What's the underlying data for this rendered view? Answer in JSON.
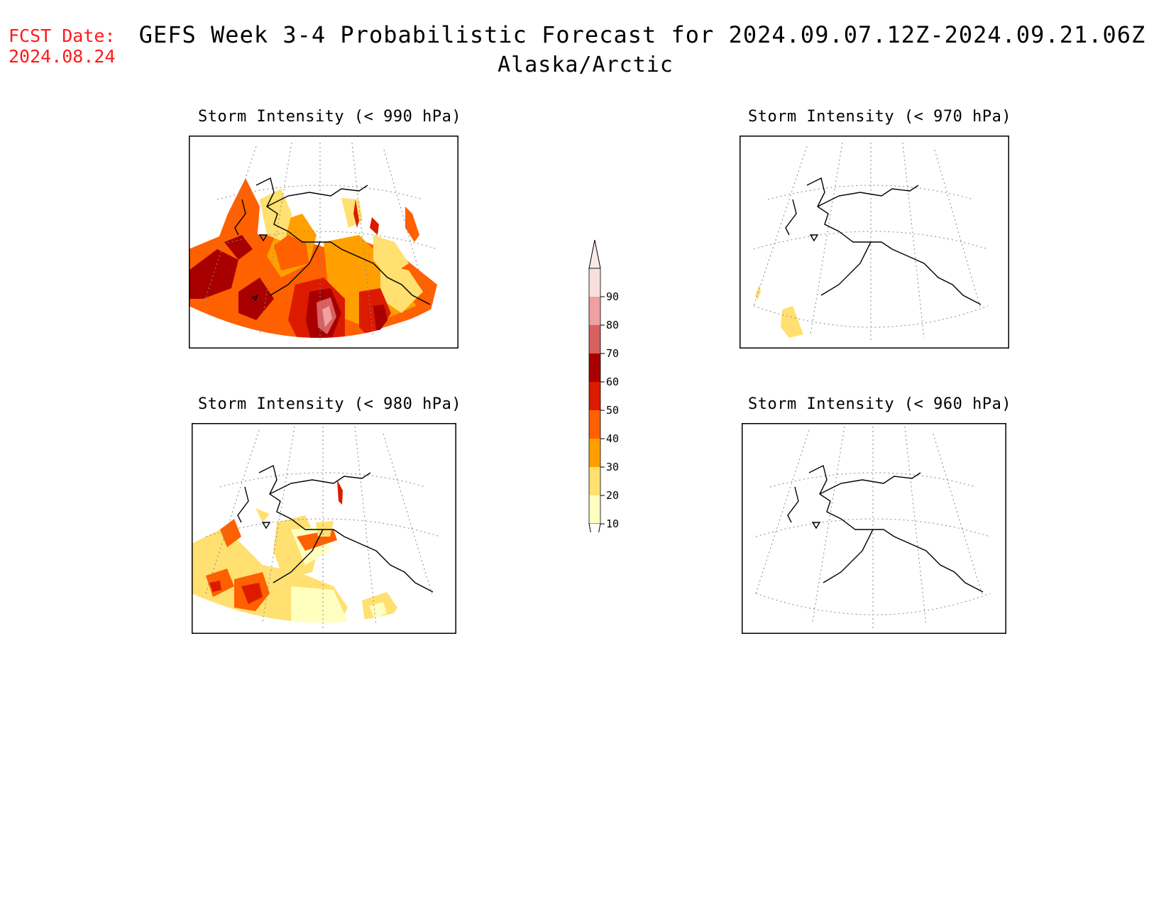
{
  "fcst": {
    "label": "FCST Date:",
    "date": "2024.08.24"
  },
  "header": {
    "title": "GEFS Week 3-4 Probabilistic Forecast for 2024.09.07.12Z-2024.09.21.06Z",
    "subtitle": "Alaska/Arctic"
  },
  "panels": [
    {
      "title": "Storm Intensity (< 990 hPa)",
      "coverage": "widespread"
    },
    {
      "title": "Storm Intensity (< 980 hPa)",
      "coverage": "moderate"
    },
    {
      "title": "Storm Intensity (< 970 hPa)",
      "coverage": "sparse"
    },
    {
      "title": "Storm Intensity (< 960 hPa)",
      "coverage": "none"
    }
  ],
  "colorbar": {
    "labels": [
      "90",
      "80",
      "70",
      "60",
      "50",
      "40",
      "30",
      "20",
      "10"
    ],
    "colors": [
      "#f9dede",
      "#f0a0a0",
      "#d86060",
      "#a80000",
      "#dc1a00",
      "#ff6000",
      "#ffa000",
      "#ffe070",
      "#ffffc0"
    ]
  }
}
